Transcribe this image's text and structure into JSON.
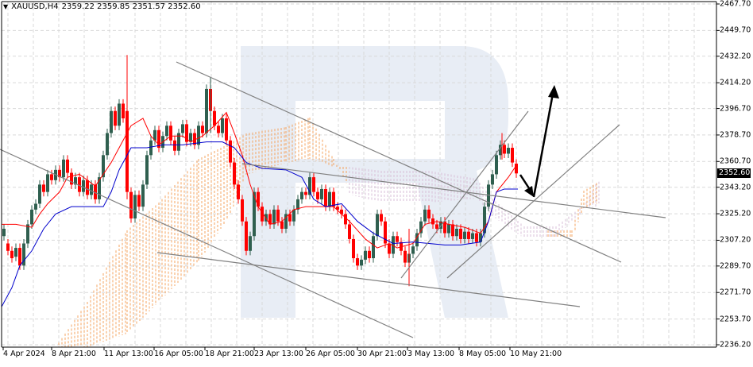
{
  "header": {
    "symbol": "XAUUSD,H4",
    "ohlc": "2359.22 2359.85 2351.57 2352.60",
    "dropdown_icon": "triangle-down-icon"
  },
  "colors": {
    "bull_candle": "#2f5f4f",
    "bear_candle": "#ff0000",
    "tenkan": "#ff0000",
    "kijun": "#0000cc",
    "cloud_a": "#f4a460",
    "cloud_b": "#d8bfd8",
    "trendline": "#808080",
    "arrow": "#000000",
    "grid": "#d9d9d9",
    "watermark": "#e8edf5"
  },
  "chart_data": {
    "type": "candlestick",
    "title": "XAUUSD,H4",
    "ohlc_last": {
      "open": 2359.22,
      "high": 2359.85,
      "low": 2351.57,
      "close": 2352.6
    },
    "current_price": "2352.60",
    "yaxis_ticks": [
      "2467.70",
      "2449.70",
      "2432.20",
      "2414.20",
      "2396.70",
      "2378.70",
      "2360.70",
      "2343.20",
      "2325.20",
      "2307.20",
      "2289.70",
      "2271.70",
      "2253.70",
      "2236.20"
    ],
    "xaxis_ticks": [
      "4 Apr 2024",
      "8 Apr 21:00",
      "11 Apr 13:00",
      "16 Apr 05:00",
      "18 Apr 21:00",
      "23 Apr 13:00",
      "26 Apr 05:00",
      "30 Apr 21:00",
      "3 May 13:00",
      "8 May 05:00",
      "10 May 21:00"
    ],
    "ylim": [
      2236.2,
      2467.7
    ],
    "indicators": [
      "Ichimoku Tenkan-sen (red)",
      "Ichimoku Kijun-sen (blue)",
      "Ichimoku Cloud (orange/thistle)"
    ],
    "annotations": [
      "Descending channel trendlines",
      "Ascending channel trendlines",
      "Forecast arrow: dip to ~2340 then rise to ~2415"
    ],
    "grid": true
  }
}
